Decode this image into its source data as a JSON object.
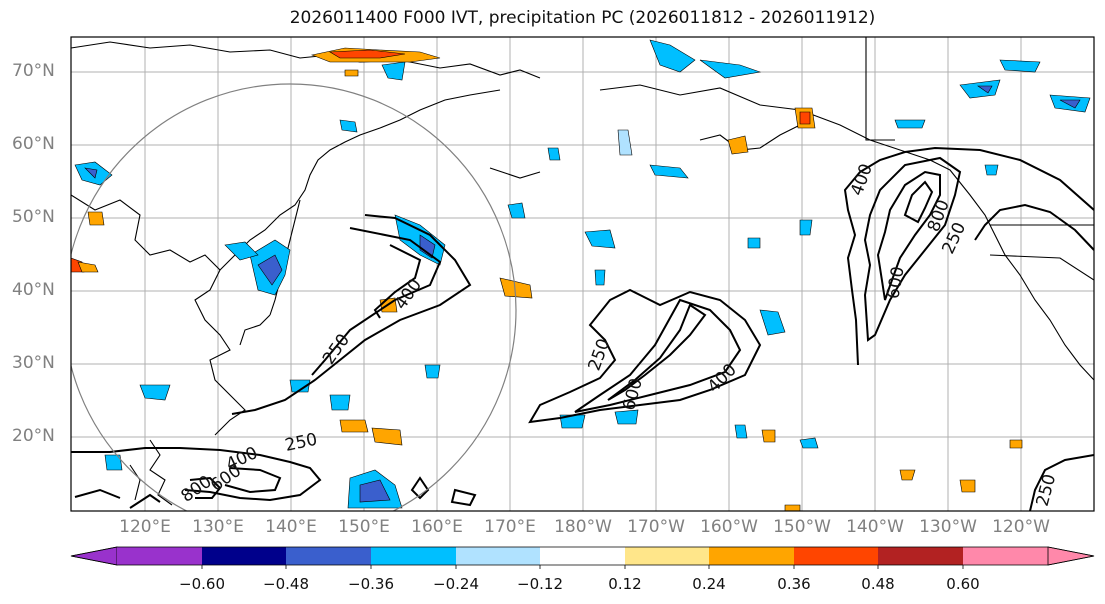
{
  "title": "2026011400 F000 IVT, precipitation PC (2026011812 - 2026011912)",
  "map": {
    "latitude_labels": [
      "70°N",
      "60°N",
      "50°N",
      "40°N",
      "30°N",
      "20°N"
    ],
    "longitude_labels": [
      "120°E",
      "130°E",
      "140°E",
      "150°E",
      "160°E",
      "170°E",
      "180°W",
      "170°W",
      "160°W",
      "150°W",
      "140°W",
      "130°W",
      "120°W"
    ],
    "ivt_contour_labels": [
      "250",
      "400",
      "600",
      "800",
      "250",
      "400",
      "600",
      "400",
      "250",
      "400",
      "600",
      "800",
      "250",
      "250"
    ]
  },
  "colorbar": {
    "tick_labels": [
      "−0.60",
      "−0.48",
      "−0.36",
      "−0.24",
      "−0.12",
      "0.12",
      "0.24",
      "0.36",
      "0.48",
      "0.60"
    ],
    "colors": [
      "#9932cc",
      "#00008b",
      "#3a5fcd",
      "#00bfff",
      "#b0e2ff",
      "#ffffff",
      "#ffe68a",
      "#ffa500",
      "#ff4500",
      "#b22222",
      "#ff88aa"
    ]
  }
}
